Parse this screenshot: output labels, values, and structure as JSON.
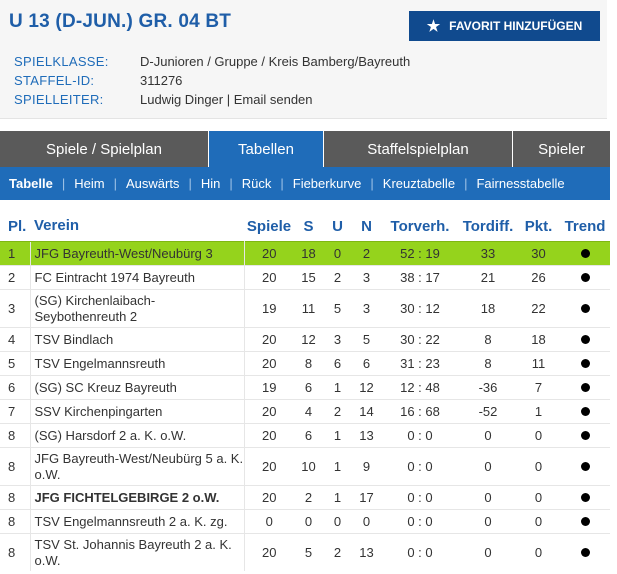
{
  "header": {
    "title": "U 13 (D-JUN.) GR. 04 BT",
    "fav_button": "FAVORIT HINZUFÜGEN",
    "meta": [
      {
        "label": "SPIELKLASSE:",
        "value": "D-Junioren / Gruppe / Kreis Bamberg/Bayreuth"
      },
      {
        "label": "STAFFEL-ID:",
        "value": "311276"
      },
      {
        "label": "SPIELLEITER:",
        "value": "Ludwig Dinger",
        "separator": "|",
        "link": "Email senden"
      }
    ]
  },
  "tabs": [
    "Spiele / Spielplan",
    "Tabellen",
    "Staffelspielplan",
    "Spieler"
  ],
  "active_tab": "Tabellen",
  "subnav": [
    "Tabelle",
    "Heim",
    "Auswärts",
    "Hin",
    "Rück",
    "Fieberkurve",
    "Kreuztabelle",
    "Fairnesstabelle"
  ],
  "subnav_separator": "|",
  "table": {
    "columns": [
      "Pl.",
      "Verein",
      "Spiele",
      "S",
      "U",
      "N",
      "Torverh.",
      "Tordiff.",
      "Pkt.",
      "Trend"
    ],
    "rows": [
      {
        "pl": "1",
        "verein": "JFG Bayreuth-West/Neubürg 3",
        "spiele": "20",
        "s": "18",
        "u": "0",
        "n": "2",
        "torverh": "52 : 19",
        "tordiff": "33",
        "pkt": "30",
        "highlight": true
      },
      {
        "pl": "2",
        "verein": "FC Eintracht 1974 Bayreuth",
        "spiele": "20",
        "s": "15",
        "u": "2",
        "n": "3",
        "torverh": "38 : 17",
        "tordiff": "21",
        "pkt": "26"
      },
      {
        "pl": "3",
        "verein": "(SG) Kirchenlaibach-Seybothenreuth 2",
        "spiele": "19",
        "s": "11",
        "u": "5",
        "n": "3",
        "torverh": "30 : 12",
        "tordiff": "18",
        "pkt": "22",
        "tall": true
      },
      {
        "pl": "4",
        "verein": "TSV Bindlach",
        "spiele": "20",
        "s": "12",
        "u": "3",
        "n": "5",
        "torverh": "30 : 22",
        "tordiff": "8",
        "pkt": "18"
      },
      {
        "pl": "5",
        "verein": "TSV Engelmannsreuth",
        "spiele": "20",
        "s": "8",
        "u": "6",
        "n": "6",
        "torverh": "31 : 23",
        "tordiff": "8",
        "pkt": "11"
      },
      {
        "pl": "6",
        "verein": "(SG) SC Kreuz Bayreuth",
        "spiele": "19",
        "s": "6",
        "u": "1",
        "n": "12",
        "torverh": "12 : 48",
        "tordiff": "-36",
        "pkt": "7"
      },
      {
        "pl": "7",
        "verein": "SSV Kirchenpingarten",
        "spiele": "20",
        "s": "4",
        "u": "2",
        "n": "14",
        "torverh": "16 : 68",
        "tordiff": "-52",
        "pkt": "1"
      },
      {
        "pl": "8",
        "verein": "(SG) Harsdorf 2 a. K. o.W.",
        "spiele": "20",
        "s": "6",
        "u": "1",
        "n": "13",
        "torverh": "0 : 0",
        "tordiff": "0",
        "pkt": "0"
      },
      {
        "pl": "8",
        "verein": "JFG Bayreuth-West/Neubürg 5 a. K. o.W.",
        "spiele": "20",
        "s": "10",
        "u": "1",
        "n": "9",
        "torverh": "0 : 0",
        "tordiff": "0",
        "pkt": "0",
        "tall": true
      },
      {
        "pl": "8",
        "verein": "JFG FICHTELGEBIRGE 2 o.W.",
        "spiele": "20",
        "s": "2",
        "u": "1",
        "n": "17",
        "torverh": "0 : 0",
        "tordiff": "0",
        "pkt": "0",
        "bold": true
      },
      {
        "pl": "8",
        "verein": "TSV Engelmannsreuth 2 a. K. zg.",
        "spiele": "0",
        "s": "0",
        "u": "0",
        "n": "0",
        "torverh": "0 : 0",
        "tordiff": "0",
        "pkt": "0"
      },
      {
        "pl": "8",
        "verein": "TSV St. Johannis Bayreuth 2 a. K. o.W.",
        "spiele": "20",
        "s": "5",
        "u": "2",
        "n": "13",
        "torverh": "0 : 0",
        "tordiff": "0",
        "pkt": "0",
        "tall": true
      }
    ],
    "trend_icon": "black-dot-icon"
  },
  "colors": {
    "brand_blue": "#1f6cb9",
    "button_dark_blue": "#104a8e",
    "tab_gray": "#5a5a5a",
    "highlight_green": "#95d31c"
  }
}
